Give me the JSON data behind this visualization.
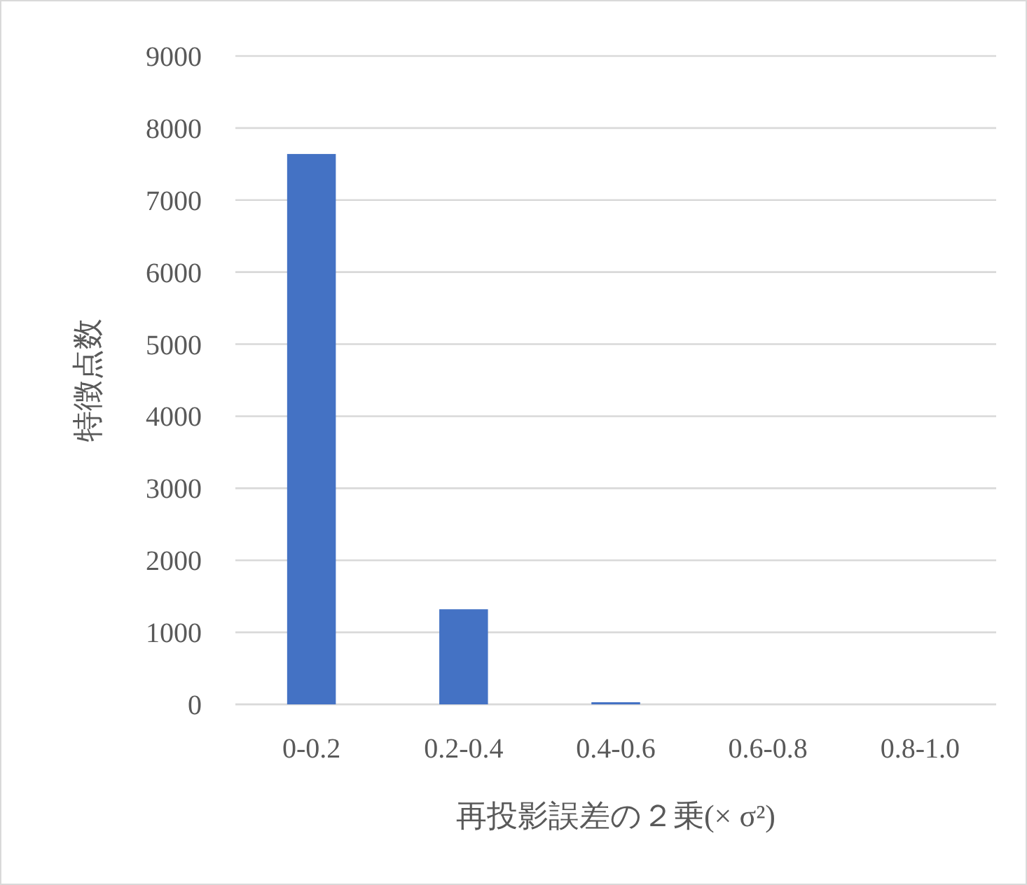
{
  "chart_data": {
    "type": "bar",
    "xlabel": "再投影誤差の２乗(× σ²)",
    "ylabel": "特徴点数",
    "categories": [
      "0-0.2",
      "0.2-0.4",
      "0.4-0.6",
      "0.6-0.8",
      "0.8-1.0"
    ],
    "values": [
      7640,
      1320,
      30,
      0,
      0
    ],
    "color": "#4472c4",
    "ylim": [
      0,
      9000
    ],
    "yticks": [
      0,
      1000,
      2000,
      3000,
      4000,
      5000,
      6000,
      7000,
      8000,
      9000
    ],
    "grid": "y"
  }
}
